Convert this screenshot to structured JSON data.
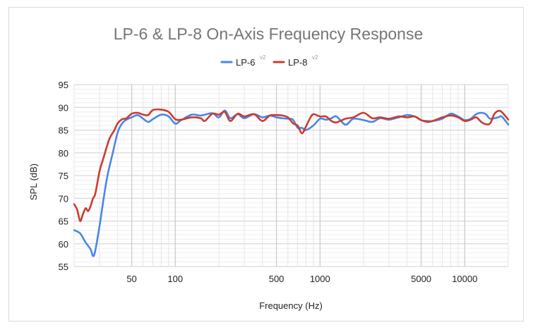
{
  "chart_data": {
    "type": "line",
    "title": "LP-6 & LP-8 On-Axis Frequency Response",
    "xlabel": "Frequency (Hz)",
    "ylabel": "SPL (dB)",
    "x_scale": "log",
    "xlim": [
      20,
      20000
    ],
    "ylim": [
      55,
      95
    ],
    "y_ticks": [
      "55",
      "60",
      "65",
      "70",
      "75",
      "80",
      "85",
      "90",
      "95"
    ],
    "x_tick_labels": [
      {
        "value": 50,
        "label": "50"
      },
      {
        "value": 100,
        "label": "100"
      },
      {
        "value": 500,
        "label": "500"
      },
      {
        "value": 1000,
        "label": "1000"
      },
      {
        "value": 5000,
        "label": "5000"
      },
      {
        "value": 10000,
        "label": "10000"
      }
    ],
    "legend_position": "top",
    "grid": true,
    "series": [
      {
        "name": "LP-6",
        "superscript": "v2",
        "color": "#4a86e8",
        "points": [
          [
            20,
            63
          ],
          [
            22,
            62.3
          ],
          [
            24,
            60.3
          ],
          [
            26,
            58.8
          ],
          [
            27,
            57.3
          ],
          [
            28,
            58.5
          ],
          [
            30,
            64
          ],
          [
            32,
            70
          ],
          [
            34,
            75
          ],
          [
            37,
            80
          ],
          [
            40,
            84.5
          ],
          [
            43,
            86.5
          ],
          [
            46,
            87.3
          ],
          [
            50,
            87.8
          ],
          [
            55,
            88.3
          ],
          [
            60,
            87.5
          ],
          [
            65,
            86.8
          ],
          [
            70,
            87.4
          ],
          [
            80,
            88.4
          ],
          [
            90,
            88
          ],
          [
            100,
            86.4
          ],
          [
            110,
            87.2
          ],
          [
            130,
            88.4
          ],
          [
            150,
            88.2
          ],
          [
            180,
            88.7
          ],
          [
            200,
            87.8
          ],
          [
            220,
            89.3
          ],
          [
            240,
            87.6
          ],
          [
            270,
            88.5
          ],
          [
            300,
            87.6
          ],
          [
            350,
            88.5
          ],
          [
            400,
            87.8
          ],
          [
            450,
            88.2
          ],
          [
            500,
            87.8
          ],
          [
            550,
            87.6
          ],
          [
            600,
            87.5
          ],
          [
            650,
            87.3
          ],
          [
            700,
            85.5
          ],
          [
            750,
            85.5
          ],
          [
            800,
            85
          ],
          [
            900,
            86
          ],
          [
            1000,
            87.5
          ],
          [
            1100,
            87.3
          ],
          [
            1200,
            87.6
          ],
          [
            1300,
            88
          ],
          [
            1500,
            86.2
          ],
          [
            1700,
            87.5
          ],
          [
            2000,
            87.2
          ],
          [
            2300,
            86.8
          ],
          [
            2600,
            87.6
          ],
          [
            3000,
            87.3
          ],
          [
            3500,
            87.8
          ],
          [
            4000,
            88.3
          ],
          [
            4500,
            88
          ],
          [
            5000,
            87.2
          ],
          [
            5500,
            87
          ],
          [
            6000,
            87
          ],
          [
            7000,
            87.5
          ],
          [
            8000,
            88.6
          ],
          [
            9000,
            88
          ],
          [
            10000,
            87.2
          ],
          [
            11000,
            87.5
          ],
          [
            12000,
            88.5
          ],
          [
            13000,
            88.8
          ],
          [
            14000,
            88.5
          ],
          [
            15000,
            87.5
          ],
          [
            17000,
            87.8
          ],
          [
            18000,
            88
          ],
          [
            20000,
            86.2
          ]
        ]
      },
      {
        "name": "LP-8",
        "superscript": "v2",
        "color": "#cc3b2e",
        "points": [
          [
            20,
            68.7
          ],
          [
            21,
            67.5
          ],
          [
            22,
            65
          ],
          [
            23,
            66.5
          ],
          [
            24,
            67.8
          ],
          [
            25,
            67.2
          ],
          [
            26,
            68.3
          ],
          [
            27,
            70
          ],
          [
            28,
            71
          ],
          [
            30,
            76
          ],
          [
            32,
            79
          ],
          [
            35,
            83
          ],
          [
            38,
            85
          ],
          [
            40,
            86.5
          ],
          [
            43,
            87.4
          ],
          [
            46,
            87.6
          ],
          [
            50,
            88.6
          ],
          [
            55,
            88.8
          ],
          [
            60,
            88.4
          ],
          [
            65,
            88.3
          ],
          [
            70,
            89.4
          ],
          [
            80,
            89.5
          ],
          [
            90,
            89
          ],
          [
            100,
            87.4
          ],
          [
            110,
            87.3
          ],
          [
            130,
            87.8
          ],
          [
            150,
            87.6
          ],
          [
            160,
            87
          ],
          [
            180,
            88.6
          ],
          [
            200,
            88.4
          ],
          [
            220,
            89
          ],
          [
            240,
            87
          ],
          [
            270,
            88.6
          ],
          [
            300,
            88
          ],
          [
            350,
            88.5
          ],
          [
            400,
            87
          ],
          [
            450,
            88.2
          ],
          [
            500,
            88.3
          ],
          [
            550,
            88.2
          ],
          [
            600,
            87.8
          ],
          [
            650,
            86.5
          ],
          [
            700,
            86
          ],
          [
            750,
            84.3
          ],
          [
            800,
            85.8
          ],
          [
            850,
            87.5
          ],
          [
            900,
            88.5
          ],
          [
            1000,
            88
          ],
          [
            1100,
            88
          ],
          [
            1200,
            87
          ],
          [
            1300,
            86.7
          ],
          [
            1500,
            87.5
          ],
          [
            1700,
            87.8
          ],
          [
            2000,
            88.8
          ],
          [
            2300,
            87.6
          ],
          [
            2600,
            87.8
          ],
          [
            3000,
            87.5
          ],
          [
            3500,
            88
          ],
          [
            4000,
            87.8
          ],
          [
            4500,
            88
          ],
          [
            5000,
            87.2
          ],
          [
            5500,
            86.8
          ],
          [
            6000,
            87
          ],
          [
            7000,
            87.8
          ],
          [
            8000,
            88.2
          ],
          [
            9000,
            87.8
          ],
          [
            10000,
            87
          ],
          [
            11000,
            87.3
          ],
          [
            12000,
            87.8
          ],
          [
            13000,
            86.8
          ],
          [
            14000,
            86.3
          ],
          [
            15000,
            86.5
          ],
          [
            16000,
            88.5
          ],
          [
            17000,
            89.2
          ],
          [
            18000,
            89
          ],
          [
            20000,
            87.3
          ]
        ]
      }
    ]
  }
}
